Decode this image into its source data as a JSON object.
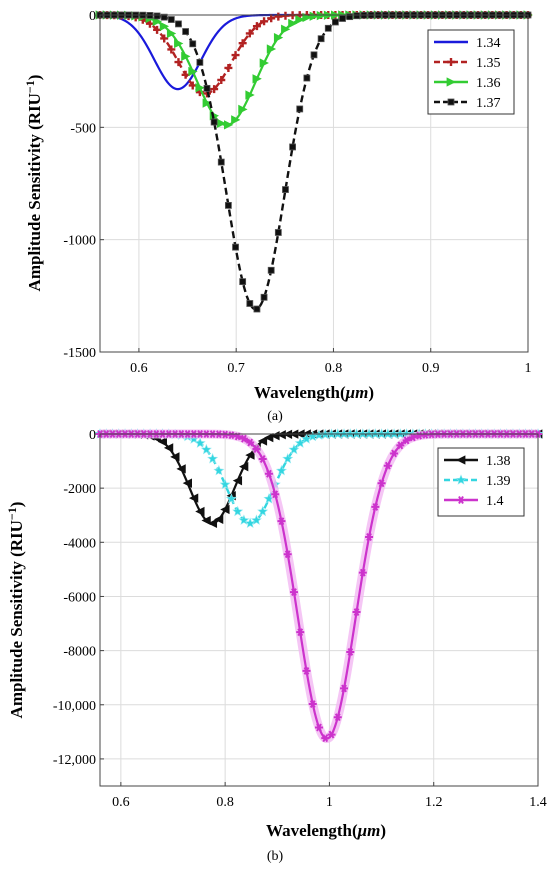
{
  "chart_data": [
    {
      "type": "line",
      "panel_label": "(a)",
      "xlabel": "Wavelength(",
      "xlabel_unit": "μm",
      "xlabel_close": ")",
      "ylabel": "Amplitude Sensitivity (RIU",
      "ylabel_sup": "−1",
      "ylabel_close": ")",
      "xlim": [
        0.56,
        1.0
      ],
      "ylim": [
        -1500,
        0
      ],
      "xticks": [
        0.6,
        0.7,
        0.8,
        0.9,
        1.0
      ],
      "xtick_labels": [
        "0.6",
        "0.7",
        "0.8",
        "0.9",
        "1"
      ],
      "yticks": [
        0,
        -500,
        -1000,
        -1500
      ],
      "ytick_labels": [
        "0",
        "-500",
        "-1000",
        "-1500"
      ],
      "grid": true,
      "legend_position": "top-right",
      "series": [
        {
          "name": "1.34",
          "color": "#1a1adb",
          "marker": "none",
          "dash": "solid",
          "peak_x": 0.64,
          "peak_y": -330,
          "width": 0.024,
          "x": [
            0.56,
            0.58,
            0.6,
            0.61,
            0.62,
            0.63,
            0.64,
            0.65,
            0.66,
            0.67,
            0.68,
            0.7,
            0.72
          ],
          "y": [
            0,
            -5,
            -60,
            -140,
            -240,
            -310,
            -330,
            -300,
            -220,
            -120,
            -50,
            -5,
            0
          ]
        },
        {
          "name": "1.35",
          "color": "#b22222",
          "marker": "plus",
          "dash": "dash",
          "peak_x": 0.668,
          "peak_y": -350,
          "width": 0.027,
          "x": [
            0.58,
            0.6,
            0.62,
            0.64,
            0.65,
            0.66,
            0.668,
            0.68,
            0.69,
            0.7,
            0.72,
            0.74,
            0.76
          ],
          "y": [
            0,
            -10,
            -60,
            -180,
            -260,
            -330,
            -350,
            -310,
            -230,
            -150,
            -40,
            -5,
            0
          ]
        },
        {
          "name": "1.36",
          "color": "#33cc33",
          "marker": "triangle-right",
          "dash": "solid",
          "peak_x": 0.69,
          "peak_y": -490,
          "width": 0.03,
          "x": [
            0.6,
            0.62,
            0.64,
            0.66,
            0.67,
            0.68,
            0.69,
            0.7,
            0.71,
            0.72,
            0.74,
            0.76,
            0.78
          ],
          "y": [
            0,
            -10,
            -50,
            -200,
            -320,
            -440,
            -490,
            -460,
            -380,
            -280,
            -100,
            -15,
            0
          ]
        },
        {
          "name": "1.37",
          "color": "#111111",
          "marker": "square",
          "dash": "dash",
          "peak_x": 0.72,
          "peak_y": -1310,
          "width": 0.03,
          "x": [
            0.62,
            0.64,
            0.66,
            0.68,
            0.7,
            0.71,
            0.72,
            0.73,
            0.74,
            0.76,
            0.78,
            0.8,
            0.82
          ],
          "y": [
            0,
            -20,
            -200,
            -600,
            -1100,
            -1270,
            -1310,
            -1260,
            -1100,
            -600,
            -200,
            -30,
            0
          ]
        }
      ]
    },
    {
      "type": "line",
      "panel_label": "(b)",
      "xlabel": "Wavelength(",
      "xlabel_unit": "μm",
      "xlabel_close": ")",
      "ylabel": "Amplitude Sensitivity (RIU",
      "ylabel_sup": "−1",
      "ylabel_close": ")",
      "xlim": [
        0.56,
        1.4
      ],
      "ylim": [
        -13000,
        0
      ],
      "xticks": [
        0.6,
        0.8,
        1.0,
        1.2,
        1.4
      ],
      "xtick_labels": [
        "0.6",
        "0.8",
        "1",
        "1.2",
        "1.4"
      ],
      "yticks": [
        0,
        -2000,
        -4000,
        -6000,
        -8000,
        -10000,
        -12000
      ],
      "ytick_labels": [
        "0",
        "-2000",
        "-4000",
        "-6000",
        "-8000",
        "-10,000",
        "-12,000"
      ],
      "grid": true,
      "legend_position": "top-right",
      "series": [
        {
          "name": "1.38",
          "color": "#111111",
          "marker": "triangle-left",
          "dash": "solid",
          "peak_x": 0.775,
          "peak_y": -3300,
          "width": 0.043,
          "x": [
            0.6,
            0.65,
            0.7,
            0.73,
            0.75,
            0.775,
            0.8,
            0.82,
            0.85,
            0.9,
            0.95
          ],
          "y": [
            0,
            -50,
            -500,
            -1800,
            -2800,
            -3300,
            -2900,
            -2000,
            -800,
            -60,
            0
          ]
        },
        {
          "name": "1.39",
          "color": "#33d6e0",
          "marker": "star",
          "dash": "dash",
          "peak_x": 0.848,
          "peak_y": -3300,
          "width": 0.045,
          "x": [
            0.7,
            0.75,
            0.78,
            0.8,
            0.82,
            0.848,
            0.87,
            0.9,
            0.93,
            0.97,
            1.0
          ],
          "y": [
            0,
            -150,
            -700,
            -1500,
            -2600,
            -3300,
            -2900,
            -1700,
            -500,
            -30,
            0
          ]
        },
        {
          "name": "1.4",
          "color": "#cc33cc",
          "marker": "asterisk",
          "dash": "solid",
          "peak_x": 0.995,
          "peak_y": -11250,
          "width": 0.055,
          "x": [
            0.8,
            0.85,
            0.9,
            0.93,
            0.96,
            0.98,
            0.995,
            1.01,
            1.03,
            1.06,
            1.1,
            1.15,
            1.2
          ],
          "y": [
            0,
            -100,
            -1500,
            -4500,
            -8500,
            -10700,
            -11250,
            -10800,
            -9000,
            -5000,
            -1200,
            -50,
            0
          ]
        }
      ]
    }
  ]
}
